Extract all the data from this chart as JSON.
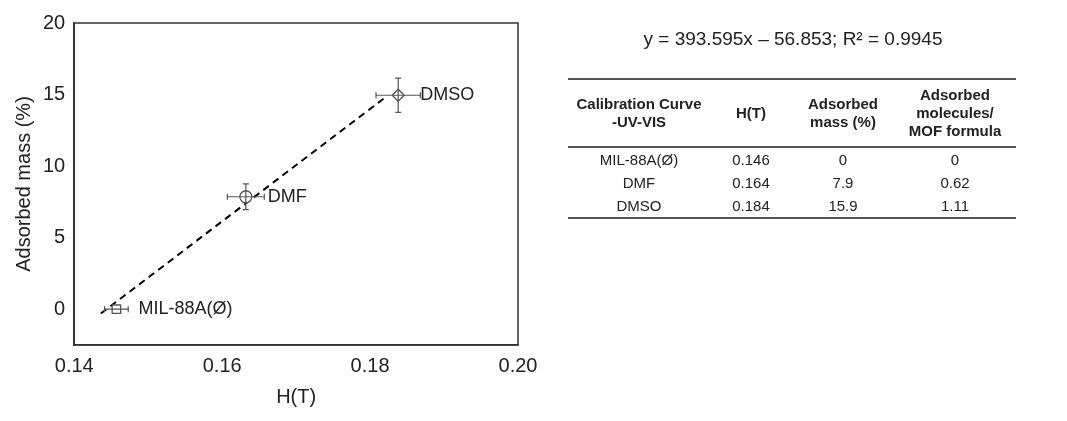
{
  "chart_data": [
    {
      "type": "scatter",
      "xlabel": "H(T)",
      "ylabel": "Adsorbed mass (%)",
      "xlim": [
        0.14,
        0.2
      ],
      "xticks": [
        0.14,
        0.16,
        0.18,
        {
          "value": 0.2,
          "label": "0.20"
        }
      ],
      "ylim": [
        -2.5,
        20
      ],
      "yticks": [
        0,
        5,
        10,
        15,
        20
      ],
      "grid": false,
      "legend": false,
      "series": [
        {
          "type": "line",
          "x": [
            0.1436,
            0.1823
          ],
          "values": [
            -0.3,
            14.9
          ],
          "color": "#000000",
          "line_style": "dashed",
          "marker": "none"
        },
        {
          "name": "MIL-88A(Ø)",
          "x": [
            0.1457
          ],
          "values": [
            0
          ],
          "xerrors": [
            0.0016
          ],
          "color": "#555555",
          "marker": "square"
        },
        {
          "name": "DMF",
          "x": [
            0.1632
          ],
          "values": [
            7.86
          ],
          "xerrors": [
            0.0025
          ],
          "errors": [
            0.9
          ],
          "color": "#555555",
          "marker": "circle"
        },
        {
          "name": "DMSO",
          "x": [
            0.1838
          ],
          "values": [
            14.95
          ],
          "xerrors": [
            0.003
          ],
          "errors": [
            1.2
          ],
          "color": "#555555",
          "marker": "diamond"
        }
      ]
    },
    {
      "type": "other",
      "title": "y = 393.595x – 56.853; R² = 0.9945",
      "legend_title": "Calibration Curve -UV-VIS",
      "categories": [
        "H(T)",
        "Adsorbed mass (%)",
        "Adsorbed molecules/ MOF formula"
      ],
      "series": [
        {
          "name": "MIL-88A(Ø)",
          "values": [
            0.146,
            0,
            0
          ],
          "value_labels": [
            "0.146",
            "0",
            "0"
          ]
        },
        {
          "name": "DMF",
          "values": [
            0.164,
            7.9,
            0.62
          ],
          "value_labels": [
            "0.164",
            "7.9",
            "0.62"
          ]
        },
        {
          "name": "DMSO",
          "values": [
            0.184,
            15.9,
            1.11
          ],
          "value_labels": [
            "0.184",
            "15.9",
            "1.11"
          ]
        }
      ]
    }
  ]
}
